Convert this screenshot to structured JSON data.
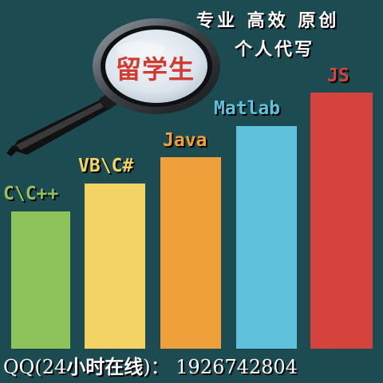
{
  "slogan": "专业 高效 原创",
  "subtitle": "个人代写",
  "lens_text": "留学生",
  "bars": [
    {
      "label": "C\\C++",
      "color": "#8ec25a",
      "label_color": "#8ec25a"
    },
    {
      "label": "VB\\C#",
      "color": "#f4d365",
      "label_color": "#f4d365"
    },
    {
      "label": "Java",
      "color": "#f0a03b",
      "label_color": "#f0a03b"
    },
    {
      "label": "Matlab",
      "color": "#5fc1dc",
      "label_color": "#5fc1dc"
    },
    {
      "label": "JS",
      "color": "#d6433d",
      "label_color": "#d6433d"
    }
  ],
  "footer": {
    "prefix": "QQ(24",
    "middle": "小时在线",
    "suffix": ")： 1926742804"
  },
  "colors": {
    "background": "#1d4b52",
    "magnifier_handle": "#1a1a1a",
    "lens_fill": "#dde6ee"
  },
  "icons": [
    "magnifying-glass-icon"
  ]
}
